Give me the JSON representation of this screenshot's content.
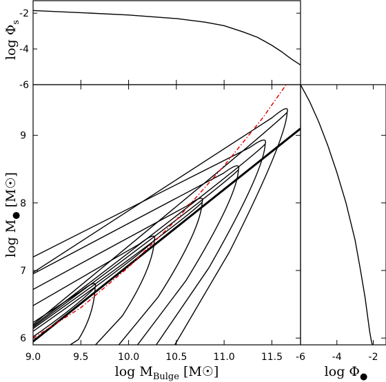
{
  "chart_data": [
    {
      "panel": "top",
      "type": "line",
      "ylabel_main": "log Φ",
      "ylabel_sub": "s",
      "xlim": [
        9.0,
        11.8
      ],
      "ylim": [
        -6,
        -1.3
      ],
      "yticks": [
        -2,
        -4,
        -6
      ],
      "ytick_labels": [
        "-2",
        "-4",
        "-6"
      ],
      "series": [
        {
          "x": [
            9.0,
            9.5,
            10.0,
            10.5,
            10.8,
            11.0,
            11.2,
            11.35,
            11.5,
            11.6,
            11.7,
            11.8
          ],
          "y": [
            -1.85,
            -1.97,
            -2.1,
            -2.3,
            -2.5,
            -2.7,
            -3.05,
            -3.35,
            -3.8,
            -4.15,
            -4.55,
            -4.9
          ]
        }
      ]
    },
    {
      "panel": "main",
      "type": "line",
      "xlabel_main": "log M",
      "xlabel_sub": "Bulge",
      "xlabel_unit": "[M☉]",
      "ylabel_main": "log M",
      "ylabel_unit": "[M☉]",
      "xlim": [
        9.0,
        11.8
      ],
      "ylim": [
        5.9,
        9.75
      ],
      "xticks": [
        9.0,
        9.5,
        10.0,
        10.5,
        11.0,
        11.5
      ],
      "xtick_labels": [
        "9.0",
        "9.5",
        "10.0",
        "10.5",
        "11.0",
        "11.5"
      ],
      "yticks": [
        6,
        7,
        8,
        9
      ],
      "ytick_labels": [
        "6",
        "7",
        "8",
        "9"
      ],
      "relation_line": {
        "x": [
          9.0,
          11.8
        ],
        "y": [
          5.95,
          9.1
        ]
      },
      "ridge_line": {
        "x": [
          9.0,
          9.5,
          10.0,
          10.5,
          11.0,
          11.4,
          11.65
        ],
        "y": [
          6.0,
          6.45,
          7.05,
          7.75,
          8.55,
          9.25,
          9.75
        ]
      },
      "contours": [
        {
          "tip_x": 9.65,
          "tip_y": 6.75,
          "upper_y0": 6.23,
          "lower_y0": 6.02,
          "lower_x_end": 9.3
        },
        {
          "tip_x": 10.27,
          "tip_y": 7.45,
          "upper_y0": 6.48,
          "lower_y0": 6.1,
          "lower_x_end": 9.6
        },
        {
          "tip_x": 10.77,
          "tip_y": 8.01,
          "upper_y0": 6.72,
          "lower_y0": 6.14,
          "lower_x_end": 9.85
        },
        {
          "tip_x": 11.15,
          "tip_y": 8.49,
          "upper_y0": 6.95,
          "lower_y0": 6.16,
          "lower_x_end": 10.05
        },
        {
          "tip_x": 11.43,
          "tip_y": 8.87,
          "upper_y0": 7.2,
          "lower_y0": 6.18,
          "lower_x_end": 10.25
        },
        {
          "tip_x": 11.66,
          "tip_y": 9.34,
          "upper_y0": 6.97,
          "lower_y0": 6.2,
          "lower_x_end": 10.45
        }
      ]
    },
    {
      "panel": "right",
      "type": "line",
      "xlabel_main": "log Φ",
      "xlim": [
        -6,
        -1.3
      ],
      "ylim": [
        5.9,
        9.75
      ],
      "xticks": [
        -6,
        -4,
        -2
      ],
      "xtick_labels": [
        "-6",
        "-4",
        "-2"
      ],
      "series": [
        {
          "x": [
            -6.0,
            -5.5,
            -5.0,
            -4.5,
            -4.0,
            -3.5,
            -3.0,
            -2.7,
            -2.45,
            -2.3,
            -2.2,
            -2.1,
            -2.05
          ],
          "y": [
            9.75,
            9.5,
            9.2,
            8.85,
            8.45,
            8.0,
            7.45,
            7.0,
            6.6,
            6.3,
            6.1,
            5.95,
            5.9
          ]
        }
      ]
    }
  ]
}
